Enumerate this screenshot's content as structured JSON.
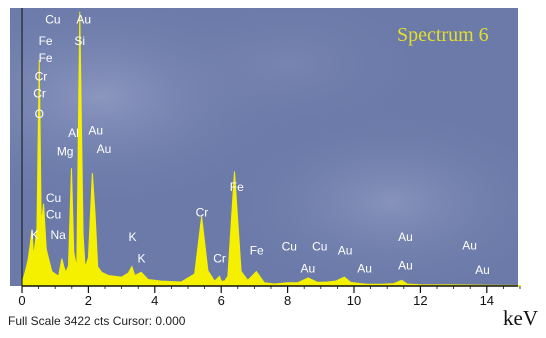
{
  "window": {
    "title": "Spectrum 6",
    "status": "Full Scale 3422 cts Cursor: 0.000",
    "unit": "keV"
  },
  "colors": {
    "plot_background": "#6b7aa9",
    "plot_background_light": "#8b96bd",
    "spectrum_fill": "#f5f000",
    "label_text": "#ffffff",
    "axis": "#101010",
    "title_text": "#e4df2c"
  },
  "chart_data": {
    "type": "area",
    "title": "Spectrum 6",
    "xlabel": "keV",
    "ylabel": "",
    "xlim": [
      0,
      15
    ],
    "ylim": [
      0,
      3422
    ],
    "x_ticks": [
      0,
      2,
      4,
      6,
      8,
      10,
      12,
      14
    ],
    "x_tick_labels": [
      "0",
      "2",
      "4",
      "6",
      "8",
      "10",
      "12",
      "14"
    ],
    "grid": false,
    "series": [
      {
        "x": [
          0.0,
          0.1,
          0.18,
          0.25,
          0.3,
          0.35,
          0.45,
          0.52,
          0.58,
          0.65,
          0.73,
          0.8,
          0.9,
          1.0,
          1.1,
          1.2,
          1.26,
          1.32,
          1.4,
          1.49,
          1.56,
          1.65,
          1.74,
          1.84,
          1.9,
          2.0,
          2.12,
          2.2,
          2.28,
          2.4,
          2.6,
          3.0,
          3.2,
          3.31,
          3.4,
          3.59,
          3.8,
          4.2,
          4.8,
          5.2,
          5.41,
          5.6,
          5.8,
          5.95,
          6.0,
          6.1,
          6.2,
          6.4,
          6.6,
          6.8,
          7.06,
          7.3,
          7.6,
          8.0,
          8.3,
          8.62,
          8.9,
          9.2,
          9.44,
          9.71,
          9.9,
          10.2,
          10.4,
          10.8,
          11.2,
          11.44,
          11.6,
          12.0,
          13.0,
          14.0,
          14.5,
          15.0
        ],
        "y": [
          40,
          180,
          320,
          520,
          700,
          360,
          720,
          2800,
          760,
          1020,
          460,
          340,
          180,
          150,
          120,
          340,
          240,
          170,
          250,
          1460,
          420,
          220,
          3400,
          640,
          230,
          350,
          1400,
          900,
          240,
          170,
          130,
          110,
          160,
          240,
          130,
          170,
          80,
          60,
          50,
          150,
          860,
          190,
          60,
          120,
          60,
          60,
          120,
          1420,
          180,
          70,
          180,
          40,
          25,
          40,
          40,
          100,
          45,
          50,
          60,
          110,
          45,
          30,
          22,
          22,
          30,
          70,
          25,
          16,
          14,
          10,
          8,
          6
        ]
      }
    ],
    "annotations": [
      {
        "text": "Cu",
        "x": 0.93,
        "y": 3255
      },
      {
        "text": "Au",
        "x": 1.86,
        "y": 3255
      },
      {
        "text": "Fe",
        "x": 0.71,
        "y": 2990
      },
      {
        "text": "Si",
        "x": 1.74,
        "y": 2990
      },
      {
        "text": "Fe",
        "x": 0.71,
        "y": 2775
      },
      {
        "text": "Cr",
        "x": 0.57,
        "y": 2545
      },
      {
        "text": "Cr",
        "x": 0.53,
        "y": 2335
      },
      {
        "text": "O",
        "x": 0.52,
        "y": 2085
      },
      {
        "text": "Al",
        "x": 1.55,
        "y": 1850
      },
      {
        "text": "Au",
        "x": 2.22,
        "y": 1880
      },
      {
        "text": "Mg",
        "x": 1.3,
        "y": 1620
      },
      {
        "text": "Au",
        "x": 2.47,
        "y": 1650
      },
      {
        "text": "Fe",
        "x": 6.47,
        "y": 1180
      },
      {
        "text": "Cr",
        "x": 5.42,
        "y": 860
      },
      {
        "text": "Cu",
        "x": 0.95,
        "y": 1040
      },
      {
        "text": "Cu",
        "x": 0.95,
        "y": 840
      },
      {
        "text": "Na",
        "x": 1.09,
        "y": 585
      },
      {
        "text": "K",
        "x": 0.38,
        "y": 580
      },
      {
        "text": "K",
        "x": 3.33,
        "y": 560
      },
      {
        "text": "K",
        "x": 3.6,
        "y": 290
      },
      {
        "text": "Cr",
        "x": 5.95,
        "y": 290
      },
      {
        "text": "Fe",
        "x": 7.07,
        "y": 390
      },
      {
        "text": "Cu",
        "x": 8.05,
        "y": 440
      },
      {
        "text": "Cu",
        "x": 8.97,
        "y": 440
      },
      {
        "text": "Au",
        "x": 8.61,
        "y": 165
      },
      {
        "text": "Au",
        "x": 9.73,
        "y": 390
      },
      {
        "text": "Au",
        "x": 10.32,
        "y": 165
      },
      {
        "text": "Au",
        "x": 11.55,
        "y": 555
      },
      {
        "text": "Au",
        "x": 11.55,
        "y": 205
      },
      {
        "text": "Au",
        "x": 13.48,
        "y": 450
      },
      {
        "text": "Au",
        "x": 13.87,
        "y": 150
      }
    ]
  }
}
